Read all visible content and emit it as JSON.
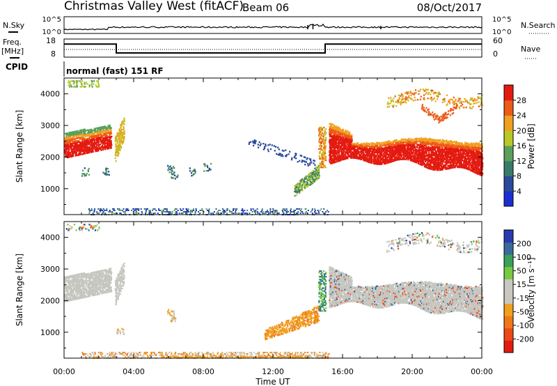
{
  "header": {
    "site": "Christmas Valley West (fitACF)",
    "beam": "Beam 06",
    "date": "08/Oct/2017"
  },
  "labels": {
    "nsky": "N.Sky",
    "nsearch": "N.Search",
    "freq_line1": "Freq.",
    "freq_line2": "[MHz]",
    "nave": "Nave",
    "cpid": "CPID",
    "cpid_value": "normal (fast) 151 RF",
    "ylabel": "Slant Range [km]",
    "xlabel": "Time UT",
    "power_label": "Power [dB]",
    "velocity_label": "Velocity [m s⁻¹]",
    "noise_left_top": "10^5",
    "noise_left_bottom": "10^0",
    "noise_right_top": "10^5",
    "noise_right_bottom": "10^0",
    "freq_left_top": "18",
    "freq_left_bottom": "8",
    "nave_right_top": "60",
    "nave_right_bottom": "0"
  },
  "colors": {
    "power_scale": [
      "#1a2fd0",
      "#2a4a9a",
      "#3a7a6a",
      "#5aa05a",
      "#b8c828",
      "#f0a020",
      "#ee5a18",
      "#e41a10"
    ],
    "velocity_scale": [
      "#2a3ab0",
      "#3a6a98",
      "#3aa05a",
      "#78c840",
      "#c8c8c0",
      "#c8c8c0",
      "#f0a020",
      "#f07818",
      "#ec4818",
      "#e41a10"
    ],
    "gray_ground": "#c6c6c0"
  },
  "chart_data": [
    {
      "type": "line",
      "name": "noise",
      "y_scale": "log",
      "ylim": [
        "10^0",
        "10^5"
      ]
    },
    {
      "type": "line",
      "name": "frequency_and_nave",
      "freq_ylim": [
        8,
        18
      ],
      "nave_ylim": [
        0,
        60
      ],
      "freq_segments": [
        {
          "start": "00:00",
          "end": "03:00",
          "value": 15.2
        },
        {
          "start": "03:00",
          "end": "15:00",
          "value": 10.3
        },
        {
          "start": "15:00",
          "end": "24:00",
          "value": 15.2
        }
      ]
    },
    {
      "type": "heatmap",
      "name": "power",
      "x": "Time UT",
      "xlim": [
        "00:00",
        "24:00"
      ],
      "xticks": [
        "00:00",
        "04:00",
        "08:00",
        "12:00",
        "16:00",
        "20:00",
        "00:00"
      ],
      "ylabel": "Slant Range [km]",
      "ylim": [
        180,
        4500
      ],
      "yticks": [
        1000,
        2000,
        3000,
        4000
      ],
      "colorbar_label": "Power [dB]",
      "colorbar_ticks": [
        4,
        8,
        12,
        16,
        20,
        24,
        28
      ],
      "colorbar_range": [
        0,
        30
      ]
    },
    {
      "type": "heatmap",
      "name": "velocity",
      "x": "Time UT",
      "xlim": [
        "00:00",
        "24:00"
      ],
      "xticks": [
        "00:00",
        "04:00",
        "08:00",
        "12:00",
        "16:00",
        "20:00",
        "00:00"
      ],
      "ylabel": "Slant Range [km]",
      "ylim": [
        180,
        4500
      ],
      "yticks": [
        1000,
        2000,
        3000,
        4000
      ],
      "colorbar_label": "Velocity [m s⁻¹]",
      "colorbar_ticks": [
        200,
        100,
        50,
        15,
        -15,
        -50,
        -100,
        -200
      ],
      "colorbar_range": [
        -250,
        250
      ]
    }
  ]
}
